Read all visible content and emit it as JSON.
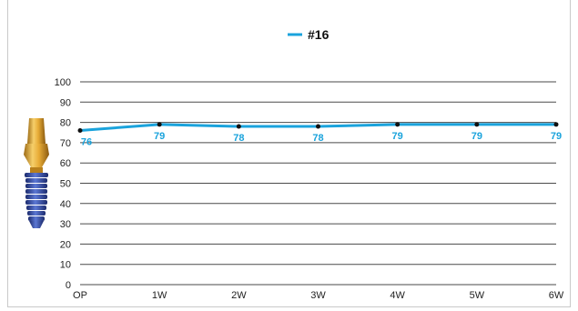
{
  "chart_data": {
    "type": "line",
    "categories": [
      "OP",
      "1W",
      "2W",
      "3W",
      "4W",
      "5W",
      "6W"
    ],
    "series": [
      {
        "name": "#16",
        "values": [
          76,
          79,
          78,
          78,
          79,
          79,
          79
        ],
        "data_labels": [
          "76",
          "79",
          "78",
          "78",
          "79",
          "79",
          "79"
        ]
      }
    ],
    "ylim": [
      0,
      100
    ],
    "yticks": [
      0,
      10,
      20,
      30,
      40,
      50,
      60,
      70,
      80,
      90,
      100
    ],
    "grid": true,
    "legend_position": "top-center",
    "xlabel": "",
    "ylabel": ""
  },
  "colors": {
    "series": "#1aa3dc",
    "grid": "#4a4a4a",
    "marker": "#111111"
  },
  "icons": {
    "decoration": "dental-implant-icon"
  }
}
